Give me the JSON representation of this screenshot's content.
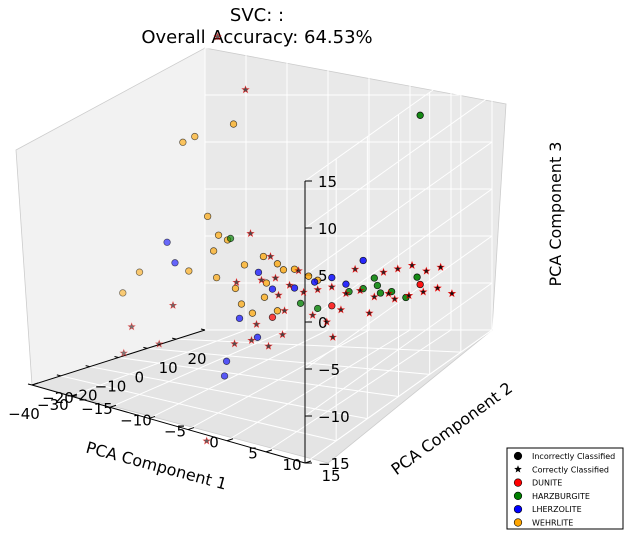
{
  "chart_data": {
    "type": "scatter",
    "title_line1": "SVC: :",
    "title_line2": "Overall Accuracy: 64.53%",
    "xlabel": "PCA Component 1",
    "ylabel": "PCA Component 2",
    "zlabel": "PCA Component 3",
    "xlim": [
      -40,
      20
    ],
    "ylim": [
      -20,
      15
    ],
    "zlim": [
      -15,
      15
    ],
    "x_ticks": [
      "−40",
      "−30",
      "−20",
      "−10",
      "0",
      "10",
      "20"
    ],
    "y_ticks": [
      "−20",
      "−15",
      "−10",
      "−5",
      "0",
      "5",
      "10",
      "15"
    ],
    "z_ticks": [
      "−15",
      "−10",
      "−5",
      "0",
      "5",
      "10",
      "15"
    ],
    "legend_position": "bottom-right",
    "legend": [
      {
        "label": "Incorrectly Classified",
        "marker": "circle",
        "color": "#000000"
      },
      {
        "label": "Correctly Classified",
        "marker": "star",
        "color": "#000000"
      },
      {
        "label": "DUNITE",
        "marker": "circle",
        "color": "#ff0000"
      },
      {
        "label": "HARZBURGITE",
        "marker": "circle",
        "color": "#008000"
      },
      {
        "label": "LHERZOLITE",
        "marker": "circle",
        "color": "#0000ff"
      },
      {
        "label": "WEHRLITE",
        "marker": "circle",
        "color": "#ffa500"
      }
    ],
    "class_colors": {
      "DUNITE": "#ff0000",
      "HARZBURGITE": "#008000",
      "LHERZOLITE": "#0000ff",
      "WEHRLITE": "#ffa500"
    },
    "correct_color": "#000000",
    "series": [
      {
        "name": "Incorrectly Classified",
        "marker": "circle",
        "points": [
          [
            -26,
            -6,
            12,
            "WEHRLITE"
          ],
          [
            -22,
            -6,
            12,
            "WEHRLITE"
          ],
          [
            -17,
            -3,
            13,
            "WEHRLITE"
          ],
          [
            -23,
            -4,
            4,
            "WEHRLITE"
          ],
          [
            -22,
            -3,
            2,
            "WEHRLITE"
          ],
          [
            -24,
            -6,
            -2,
            "WEHRLITE"
          ],
          [
            -21,
            -4,
            0,
            "WEHRLITE"
          ],
          [
            -19,
            -3,
            1,
            "WEHRLITE"
          ],
          [
            -19,
            -2,
            -4,
            "WEHRLITE"
          ],
          [
            -16,
            -2,
            -2,
            "WEHRLITE"
          ],
          [
            -15,
            0,
            -1,
            "WEHRLITE"
          ],
          [
            -14,
            0,
            -4,
            "WEHRLITE"
          ],
          [
            -13,
            1,
            -2,
            "WEHRLITE"
          ],
          [
            -11,
            1,
            -3,
            "WEHRLITE"
          ],
          [
            -10,
            2,
            -3,
            "WEHRLITE"
          ],
          [
            -8,
            3,
            -4,
            "WEHRLITE"
          ],
          [
            -12,
            -1,
            -6,
            "WEHRLITE"
          ],
          [
            -16,
            -1,
            -7,
            "WEHRLITE"
          ],
          [
            -30,
            -10,
            -2,
            "WEHRLITE"
          ],
          [
            -33,
            -11,
            -4,
            "WEHRLITE"
          ],
          [
            -20,
            -4,
            -3,
            "WEHRLITE"
          ],
          [
            -17,
            -2,
            -6,
            "WEHRLITE"
          ],
          [
            -13,
            1,
            -7,
            "WEHRLITE"
          ],
          [
            -5,
            3,
            -5,
            "WEHRLITE"
          ],
          [
            -26,
            -8,
            1,
            "LHERZOLITE"
          ],
          [
            -26,
            -7,
            -1,
            "LHERZOLITE"
          ],
          [
            -14,
            -1,
            -3,
            "LHERZOLITE"
          ],
          [
            -12,
            0,
            -5,
            "LHERZOLITE"
          ],
          [
            -10,
            2,
            -5,
            "LHERZOLITE"
          ],
          [
            -6,
            3,
            -5,
            "LHERZOLITE"
          ],
          [
            -3,
            4,
            -5,
            "LHERZOLITE"
          ],
          [
            -1,
            5,
            -6,
            "LHERZOLITE"
          ],
          [
            2,
            6,
            -4,
            "LHERZOLITE"
          ],
          [
            -9,
            -3,
            -11,
            "LHERZOLITE"
          ],
          [
            -14,
            -5,
            -13,
            "LHERZOLITE"
          ],
          [
            -12,
            -6,
            -15,
            "LHERZOLITE"
          ],
          [
            -15,
            -3,
            -8,
            "LHERZOLITE"
          ],
          [
            -18,
            -3,
            1,
            "HARZBURGITE"
          ],
          [
            10,
            10,
            10,
            "HARZBURGITE"
          ],
          [
            0,
            5,
            -7,
            "HARZBURGITE"
          ],
          [
            2,
            6,
            -7,
            "HARZBURGITE"
          ],
          [
            4,
            7,
            -7,
            "HARZBURGITE"
          ],
          [
            5,
            7,
            -8,
            "HARZBURGITE"
          ],
          [
            6,
            8,
            -8,
            "HARZBURGITE"
          ],
          [
            8,
            9,
            -9,
            "HARZBURGITE"
          ],
          [
            3,
            7,
            -6,
            "HARZBURGITE"
          ],
          [
            -8,
            2,
            -7,
            "HARZBURGITE"
          ],
          [
            -5,
            3,
            -8,
            "HARZBURGITE"
          ],
          [
            9,
            10,
            -7,
            "HARZBURGITE"
          ],
          [
            -12,
            0,
            -8,
            "DUNITE"
          ],
          [
            -3,
            4,
            -8,
            "DUNITE"
          ],
          [
            10,
            10,
            -8,
            "DUNITE"
          ]
        ]
      },
      {
        "name": "Correctly Classified",
        "marker": "star",
        "points": [
          [
            -17,
            -5,
            22,
            "DUNITE"
          ],
          [
            -13,
            -3,
            16,
            "DUNITE"
          ],
          [
            -24,
            -8,
            -6,
            "DUNITE"
          ],
          [
            -30,
            -11,
            -8,
            "DUNITE"
          ],
          [
            -26,
            -9,
            -10,
            "DUNITE"
          ],
          [
            -30,
            -12,
            -11,
            "DUNITE"
          ],
          [
            -14,
            -2,
            1,
            "DUNITE"
          ],
          [
            -16,
            -3,
            -4,
            "DUNITE"
          ],
          [
            -10,
            0,
            -6,
            "DUNITE"
          ],
          [
            -18,
            -6,
            -21,
            "DUNITE"
          ],
          [
            -14,
            -4,
            -11,
            "DUNITE"
          ],
          [
            -11,
            -3,
            -11,
            "DUNITE"
          ],
          [
            -8,
            -2,
            -12,
            "DUNITE"
          ],
          [
            -6,
            -1,
            -11,
            "DUNITE"
          ],
          [
            -13,
            -1,
            -4,
            "DUNITE"
          ],
          [
            -11,
            0,
            -4,
            "DUNITE"
          ],
          [
            -9,
            1,
            -5,
            "DUNITE"
          ],
          [
            -7,
            2,
            -6,
            "DUNITE"
          ],
          [
            -5,
            3,
            -6,
            "DUNITE"
          ],
          [
            -3,
            4,
            -6,
            "DUNITE"
          ],
          [
            -1,
            5,
            -7,
            "DUNITE"
          ],
          [
            1,
            6,
            -7,
            "DUNITE"
          ],
          [
            3,
            7,
            -8,
            "DUNITE"
          ],
          [
            5,
            8,
            -8,
            "DUNITE"
          ],
          [
            7,
            8,
            -9,
            "DUNITE"
          ],
          [
            9,
            9,
            -9,
            "DUNITE"
          ],
          [
            11,
            10,
            -9,
            "DUNITE"
          ],
          [
            13,
            11,
            -9,
            "DUNITE"
          ],
          [
            -8,
            0,
            -8,
            "DUNITE"
          ],
          [
            -4,
            2,
            -9,
            "DUNITE"
          ],
          [
            0,
            4,
            -9,
            "DUNITE"
          ],
          [
            4,
            6,
            -10,
            "DUNITE"
          ],
          [
            -12,
            -2,
            -9,
            "DUNITE"
          ],
          [
            -2,
            3,
            -10,
            "DUNITE"
          ],
          [
            6,
            7,
            -6,
            "DUNITE"
          ],
          [
            8,
            8,
            -6,
            "DUNITE"
          ],
          [
            10,
            9,
            -6,
            "DUNITE"
          ],
          [
            12,
            10,
            -7,
            "DUNITE"
          ],
          [
            2,
            5,
            -5,
            "DUNITE"
          ],
          [
            -6,
            1,
            -4,
            "DUNITE"
          ],
          [
            -10,
            -1,
            -2,
            "DUNITE"
          ],
          [
            14,
            11,
            -7,
            "DUNITE"
          ],
          [
            15,
            12,
            -10,
            "DUNITE"
          ],
          [
            0,
            3,
            -12,
            "DUNITE"
          ]
        ]
      }
    ]
  }
}
